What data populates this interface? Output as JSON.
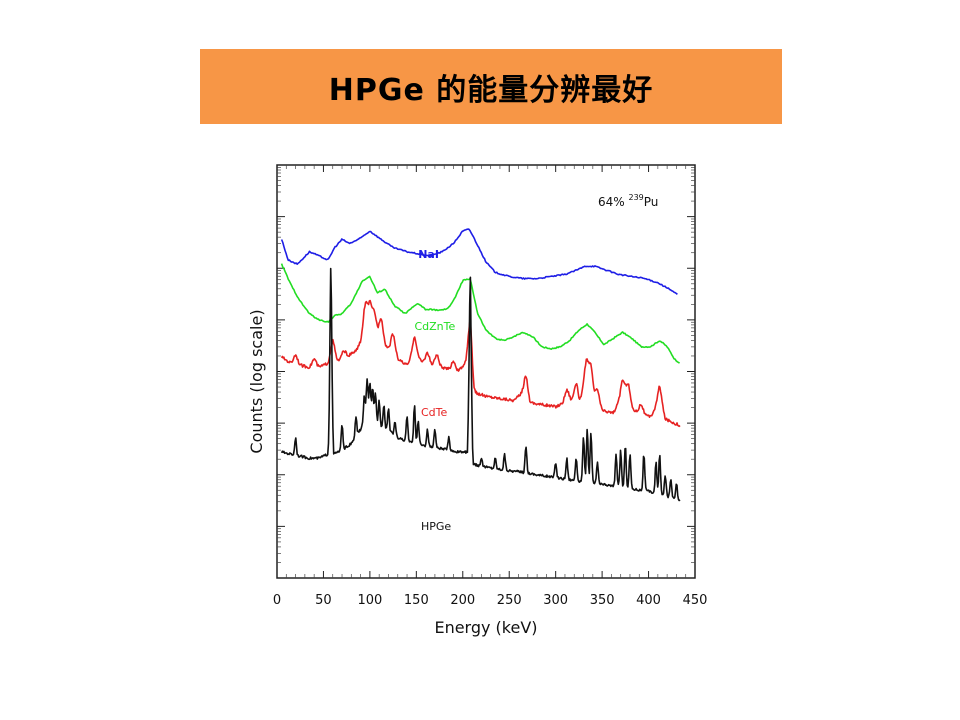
{
  "slide": {
    "title": "HPGe 的能量分辨最好"
  },
  "chart_data": {
    "type": "line",
    "title": "",
    "xlabel": "Energy (keV)",
    "ylabel": "Counts (log scale)",
    "xlim": [
      0,
      450
    ],
    "x_ticks": [
      0,
      50,
      100,
      150,
      200,
      250,
      300,
      350,
      400,
      450
    ],
    "y_scale": "log",
    "y_tick_labels_shown": false,
    "grid": false,
    "annotation": {
      "prefix": "64% ",
      "superscript": "239",
      "element": "Pu"
    },
    "series": [
      {
        "name": "NaI",
        "color": "#1e1ee6",
        "points": [
          [
            5,
            0.82
          ],
          [
            12,
            0.77
          ],
          [
            22,
            0.76
          ],
          [
            35,
            0.79
          ],
          [
            45,
            0.78
          ],
          [
            55,
            0.77
          ],
          [
            62,
            0.8
          ],
          [
            70,
            0.82
          ],
          [
            78,
            0.81
          ],
          [
            88,
            0.82
          ],
          [
            100,
            0.84
          ],
          [
            112,
            0.82
          ],
          [
            125,
            0.8
          ],
          [
            140,
            0.79
          ],
          [
            152,
            0.785
          ],
          [
            165,
            0.78
          ],
          [
            178,
            0.79
          ],
          [
            190,
            0.81
          ],
          [
            200,
            0.84
          ],
          [
            207,
            0.845
          ],
          [
            215,
            0.81
          ],
          [
            225,
            0.765
          ],
          [
            235,
            0.74
          ],
          [
            250,
            0.73
          ],
          [
            265,
            0.725
          ],
          [
            280,
            0.725
          ],
          [
            295,
            0.73
          ],
          [
            310,
            0.735
          ],
          [
            322,
            0.745
          ],
          [
            332,
            0.755
          ],
          [
            342,
            0.755
          ],
          [
            355,
            0.745
          ],
          [
            368,
            0.735
          ],
          [
            382,
            0.73
          ],
          [
            396,
            0.725
          ],
          [
            410,
            0.715
          ],
          [
            422,
            0.7
          ],
          [
            432,
            0.685
          ]
        ]
      },
      {
        "name": "CdZnTe",
        "color": "#22dd22",
        "points": [
          [
            5,
            0.76
          ],
          [
            15,
            0.71
          ],
          [
            25,
            0.67
          ],
          [
            35,
            0.64
          ],
          [
            45,
            0.625
          ],
          [
            55,
            0.62
          ],
          [
            62,
            0.635
          ],
          [
            70,
            0.64
          ],
          [
            80,
            0.665
          ],
          [
            92,
            0.72
          ],
          [
            100,
            0.73
          ],
          [
            108,
            0.69
          ],
          [
            116,
            0.7
          ],
          [
            126,
            0.66
          ],
          [
            138,
            0.64
          ],
          [
            146,
            0.655
          ],
          [
            152,
            0.665
          ],
          [
            160,
            0.65
          ],
          [
            168,
            0.65
          ],
          [
            176,
            0.648
          ],
          [
            184,
            0.652
          ],
          [
            192,
            0.68
          ],
          [
            200,
            0.72
          ],
          [
            208,
            0.725
          ],
          [
            216,
            0.64
          ],
          [
            225,
            0.6
          ],
          [
            235,
            0.58
          ],
          [
            245,
            0.575
          ],
          [
            255,
            0.585
          ],
          [
            265,
            0.595
          ],
          [
            275,
            0.585
          ],
          [
            285,
            0.56
          ],
          [
            295,
            0.555
          ],
          [
            305,
            0.56
          ],
          [
            315,
            0.575
          ],
          [
            325,
            0.6
          ],
          [
            334,
            0.615
          ],
          [
            342,
            0.595
          ],
          [
            352,
            0.565
          ],
          [
            362,
            0.58
          ],
          [
            372,
            0.595
          ],
          [
            382,
            0.58
          ],
          [
            392,
            0.56
          ],
          [
            402,
            0.56
          ],
          [
            412,
            0.575
          ],
          [
            420,
            0.56
          ],
          [
            428,
            0.53
          ],
          [
            434,
            0.52
          ]
        ]
      },
      {
        "name": "CdTe",
        "color": "#e62222",
        "points": [
          [
            5,
            0.535
          ],
          [
            15,
            0.52
          ],
          [
            25,
            0.515
          ],
          [
            35,
            0.51
          ],
          [
            45,
            0.51
          ],
          [
            55,
            0.52
          ],
          [
            60,
            0.545
          ],
          [
            65,
            0.525
          ],
          [
            75,
            0.535
          ],
          [
            85,
            0.55
          ],
          [
            95,
            0.59
          ],
          [
            100,
            0.605
          ],
          [
            105,
            0.58
          ],
          [
            112,
            0.57
          ],
          [
            120,
            0.555
          ],
          [
            130,
            0.53
          ],
          [
            140,
            0.515
          ],
          [
            148,
            0.545
          ],
          [
            155,
            0.525
          ],
          [
            165,
            0.515
          ],
          [
            175,
            0.51
          ],
          [
            185,
            0.505
          ],
          [
            195,
            0.5
          ],
          [
            203,
            0.52
          ],
          [
            208,
            0.565
          ],
          [
            212,
            0.45
          ],
          [
            225,
            0.44
          ],
          [
            240,
            0.435
          ],
          [
            255,
            0.43
          ],
          [
            268,
            0.455
          ],
          [
            272,
            0.425
          ],
          [
            285,
            0.42
          ],
          [
            300,
            0.415
          ],
          [
            315,
            0.43
          ],
          [
            325,
            0.42
          ],
          [
            333,
            0.475
          ],
          [
            340,
            0.43
          ],
          [
            350,
            0.405
          ],
          [
            362,
            0.4
          ],
          [
            372,
            0.44
          ],
          [
            382,
            0.41
          ],
          [
            392,
            0.395
          ],
          [
            402,
            0.39
          ],
          [
            412,
            0.43
          ],
          [
            418,
            0.385
          ],
          [
            428,
            0.375
          ],
          [
            434,
            0.37
          ]
        ]
      },
      {
        "name": "HPGe",
        "color": "#111111",
        "points": [
          [
            5,
            0.305
          ],
          [
            15,
            0.3
          ],
          [
            25,
            0.295
          ],
          [
            35,
            0.29
          ],
          [
            45,
            0.29
          ],
          [
            55,
            0.3
          ],
          [
            58,
            0.48
          ],
          [
            61,
            0.3
          ],
          [
            70,
            0.31
          ],
          [
            80,
            0.325
          ],
          [
            90,
            0.36
          ],
          [
            98,
            0.4
          ],
          [
            102,
            0.385
          ],
          [
            108,
            0.37
          ],
          [
            118,
            0.36
          ],
          [
            130,
            0.34
          ],
          [
            140,
            0.33
          ],
          [
            150,
            0.325
          ],
          [
            160,
            0.32
          ],
          [
            172,
            0.315
          ],
          [
            185,
            0.31
          ],
          [
            195,
            0.305
          ],
          [
            205,
            0.305
          ],
          [
            208,
            0.565
          ],
          [
            211,
            0.275
          ],
          [
            222,
            0.27
          ],
          [
            235,
            0.265
          ],
          [
            250,
            0.26
          ],
          [
            268,
            0.255
          ],
          [
            280,
            0.25
          ],
          [
            295,
            0.245
          ],
          [
            310,
            0.24
          ],
          [
            325,
            0.235
          ],
          [
            340,
            0.23
          ],
          [
            355,
            0.225
          ],
          [
            370,
            0.22
          ],
          [
            385,
            0.215
          ],
          [
            400,
            0.21
          ],
          [
            415,
            0.2
          ],
          [
            425,
            0.195
          ],
          [
            434,
            0.19
          ]
        ]
      }
    ],
    "peaks": {
      "CdTe": [
        [
          20,
          0.54
        ],
        [
          40,
          0.53
        ],
        [
          60,
          0.575
        ],
        [
          72,
          0.55
        ],
        [
          95,
          0.66
        ],
        [
          100,
          0.66
        ],
        [
          105,
          0.64
        ],
        [
          112,
          0.63
        ],
        [
          125,
          0.59
        ],
        [
          148,
          0.585
        ],
        [
          162,
          0.545
        ],
        [
          172,
          0.54
        ],
        [
          190,
          0.525
        ],
        [
          208,
          0.625
        ],
        [
          268,
          0.49
        ],
        [
          312,
          0.455
        ],
        [
          322,
          0.47
        ],
        [
          333,
          0.525
        ],
        [
          338,
          0.51
        ],
        [
          345,
          0.455
        ],
        [
          372,
          0.48
        ],
        [
          378,
          0.47
        ],
        [
          392,
          0.42
        ],
        [
          412,
          0.465
        ]
      ],
      "HPGe": [
        [
          20,
          0.34
        ],
        [
          58,
          0.77
        ],
        [
          70,
          0.37
        ],
        [
          85,
          0.39
        ],
        [
          94,
          0.44
        ],
        [
          97,
          0.48
        ],
        [
          100,
          0.47
        ],
        [
          103,
          0.46
        ],
        [
          106,
          0.45
        ],
        [
          110,
          0.43
        ],
        [
          115,
          0.42
        ],
        [
          120,
          0.41
        ],
        [
          127,
          0.38
        ],
        [
          140,
          0.39
        ],
        [
          148,
          0.42
        ],
        [
          152,
          0.38
        ],
        [
          162,
          0.36
        ],
        [
          170,
          0.36
        ],
        [
          185,
          0.34
        ],
        [
          208,
          0.75
        ],
        [
          220,
          0.29
        ],
        [
          235,
          0.29
        ],
        [
          245,
          0.3
        ],
        [
          268,
          0.32
        ],
        [
          300,
          0.28
        ],
        [
          312,
          0.29
        ],
        [
          322,
          0.29
        ],
        [
          330,
          0.34
        ],
        [
          334,
          0.36
        ],
        [
          338,
          0.35
        ],
        [
          345,
          0.28
        ],
        [
          365,
          0.3
        ],
        [
          370,
          0.31
        ],
        [
          375,
          0.32
        ],
        [
          380,
          0.3
        ],
        [
          395,
          0.3
        ],
        [
          408,
          0.28
        ],
        [
          412,
          0.3
        ],
        [
          418,
          0.25
        ],
        [
          424,
          0.24
        ],
        [
          430,
          0.23
        ]
      ]
    }
  }
}
